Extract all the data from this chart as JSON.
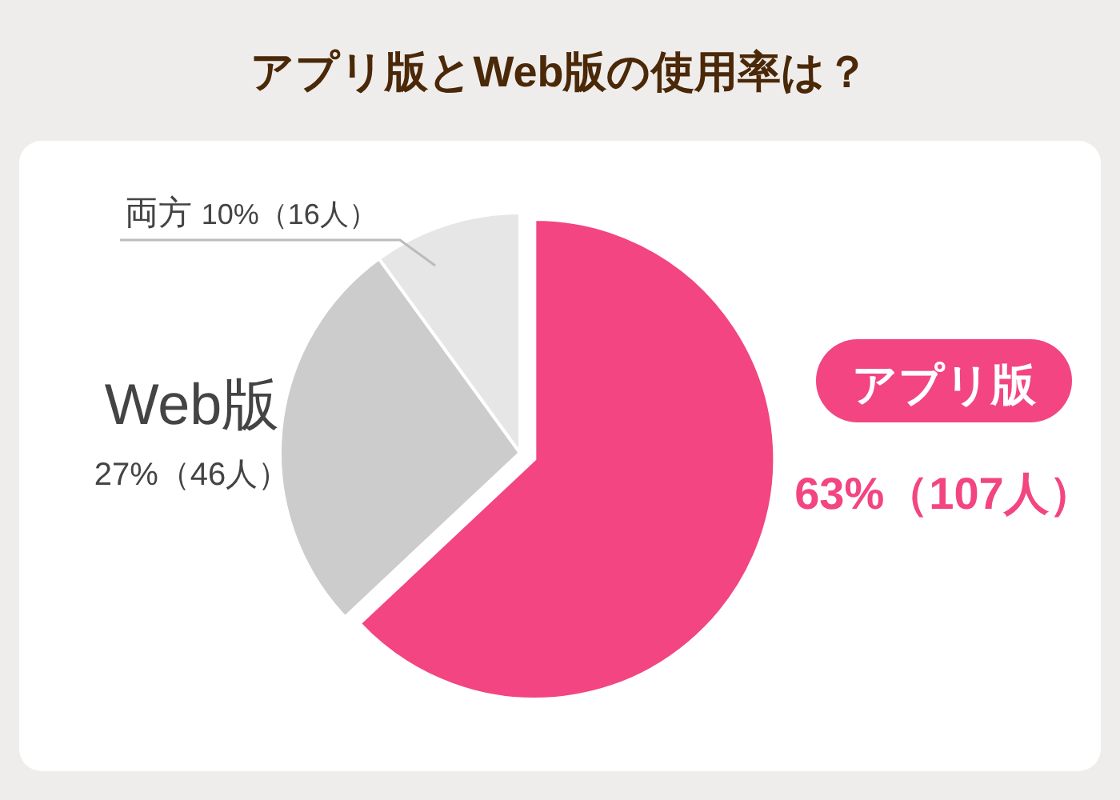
{
  "chart_data": {
    "type": "pie",
    "title": "アプリ版とWeb版の使用率は？",
    "categories": [
      "アプリ版",
      "Web版",
      "両方"
    ],
    "values": [
      63,
      27,
      10
    ],
    "colors": [
      "#f24581",
      "#cccccc",
      "#e6e6e6"
    ],
    "value_labels": [
      "63%（107人）",
      "27%（46人）",
      "10%（16人）"
    ]
  }
}
